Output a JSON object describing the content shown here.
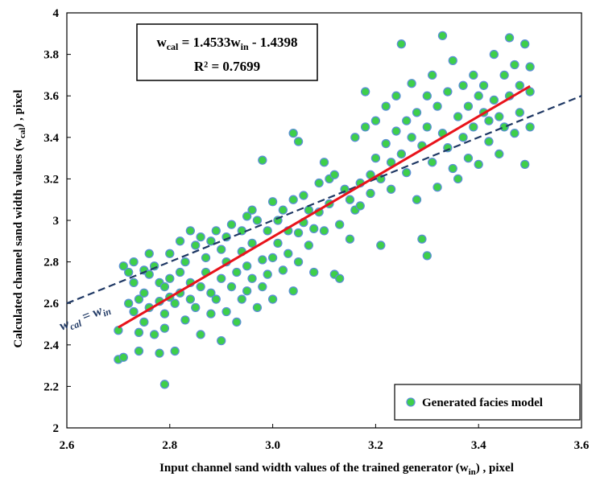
{
  "chart_data": {
    "type": "scatter",
    "xlabel": "Input channel sand width values of the trained generator (w",
    "xlabel_sub": "in",
    "xlabel_tail": ") , pixel",
    "ylabel": "Calculated channel sand width values (w",
    "ylabel_sub": "cal",
    "ylabel_tail": ") , pixel",
    "xlim": [
      2.6,
      3.6
    ],
    "ylim": [
      2,
      4
    ],
    "xticks": [
      "2.6",
      "2.8",
      "3.0",
      "3.2",
      "3.4",
      "3.6"
    ],
    "yticks": [
      "2",
      "2.2",
      "2.4",
      "2.6",
      "2.8",
      "3",
      "3.2",
      "3.4",
      "3.6",
      "3.8",
      "4"
    ],
    "grid": false,
    "legend_position": "bottom-right",
    "equation": {
      "lhs": "w",
      "lhs_sub": "cal",
      "mid": " = 1.4533w",
      "mid_sub": "in",
      "tail": " - 1.4398",
      "r2": "R² = 0.7699"
    },
    "identity_label": {
      "main": "w",
      "sub1": "cal",
      "eq": " = w",
      "sub2": "in"
    },
    "trend_line": {
      "slope": 1.4533,
      "intercept": -1.4398,
      "x_start": 2.7,
      "x_end": 3.5,
      "color": "#e8131b"
    },
    "identity_line": {
      "color": "#1f3864",
      "style": "dashed"
    },
    "series": [
      {
        "name": "Generated facies model",
        "marker_fill": "#3ecf4a",
        "marker_edge": "#5b8fd6",
        "points": [
          [
            2.7,
            2.33
          ],
          [
            2.7,
            2.47
          ],
          [
            2.71,
            2.78
          ],
          [
            2.71,
            2.34
          ],
          [
            2.72,
            2.6
          ],
          [
            2.72,
            2.75
          ],
          [
            2.73,
            2.7
          ],
          [
            2.73,
            2.8
          ],
          [
            2.73,
            2.56
          ],
          [
            2.74,
            2.62
          ],
          [
            2.74,
            2.46
          ],
          [
            2.74,
            2.37
          ],
          [
            2.75,
            2.76
          ],
          [
            2.75,
            2.51
          ],
          [
            2.75,
            2.65
          ],
          [
            2.76,
            2.74
          ],
          [
            2.76,
            2.84
          ],
          [
            2.76,
            2.58
          ],
          [
            2.77,
            2.78
          ],
          [
            2.77,
            2.45
          ],
          [
            2.78,
            2.36
          ],
          [
            2.78,
            2.61
          ],
          [
            2.78,
            2.7
          ],
          [
            2.79,
            2.68
          ],
          [
            2.79,
            2.21
          ],
          [
            2.79,
            2.48
          ],
          [
            2.79,
            2.55
          ],
          [
            2.8,
            2.63
          ],
          [
            2.8,
            2.84
          ],
          [
            2.8,
            2.72
          ],
          [
            2.81,
            2.37
          ],
          [
            2.81,
            2.6
          ],
          [
            2.82,
            2.9
          ],
          [
            2.82,
            2.75
          ],
          [
            2.82,
            2.65
          ],
          [
            2.83,
            2.52
          ],
          [
            2.83,
            2.8
          ],
          [
            2.84,
            2.95
          ],
          [
            2.84,
            2.7
          ],
          [
            2.84,
            2.62
          ],
          [
            2.85,
            2.88
          ],
          [
            2.85,
            2.58
          ],
          [
            2.86,
            2.68
          ],
          [
            2.86,
            2.92
          ],
          [
            2.86,
            2.45
          ],
          [
            2.87,
            2.75
          ],
          [
            2.87,
            2.82
          ],
          [
            2.88,
            2.55
          ],
          [
            2.88,
            2.9
          ],
          [
            2.88,
            2.65
          ],
          [
            2.89,
            2.95
          ],
          [
            2.89,
            2.62
          ],
          [
            2.9,
            2.72
          ],
          [
            2.9,
            2.86
          ],
          [
            2.9,
            2.42
          ],
          [
            2.91,
            2.8
          ],
          [
            2.91,
            2.92
          ],
          [
            2.91,
            2.56
          ],
          [
            2.92,
            2.68
          ],
          [
            2.92,
            2.98
          ],
          [
            2.93,
            2.75
          ],
          [
            2.93,
            2.51
          ],
          [
            2.94,
            2.85
          ],
          [
            2.94,
            2.95
          ],
          [
            2.94,
            2.62
          ],
          [
            2.95,
            3.02
          ],
          [
            2.95,
            2.78
          ],
          [
            2.95,
            2.66
          ],
          [
            2.96,
            3.05
          ],
          [
            2.96,
            2.72
          ],
          [
            2.96,
            2.89
          ],
          [
            2.97,
            2.58
          ],
          [
            2.97,
            3.0
          ],
          [
            2.98,
            2.81
          ],
          [
            2.98,
            3.29
          ],
          [
            2.98,
            2.68
          ],
          [
            2.99,
            2.95
          ],
          [
            2.99,
            2.74
          ],
          [
            3.0,
            3.09
          ],
          [
            3.0,
            2.82
          ],
          [
            3.0,
            2.62
          ],
          [
            3.01,
            3.0
          ],
          [
            3.01,
            2.89
          ],
          [
            3.02,
            2.76
          ],
          [
            3.02,
            3.05
          ],
          [
            3.03,
            2.95
          ],
          [
            3.03,
            2.84
          ],
          [
            3.04,
            2.66
          ],
          [
            3.04,
            3.1
          ],
          [
            3.04,
            3.42
          ],
          [
            3.05,
            3.38
          ],
          [
            3.05,
            2.94
          ],
          [
            3.05,
            2.8
          ],
          [
            3.06,
            3.12
          ],
          [
            3.06,
            2.99
          ],
          [
            3.07,
            2.88
          ],
          [
            3.07,
            3.05
          ],
          [
            3.08,
            2.96
          ],
          [
            3.08,
            2.75
          ],
          [
            3.09,
            3.18
          ],
          [
            3.09,
            3.04
          ],
          [
            3.1,
            3.28
          ],
          [
            3.1,
            2.95
          ],
          [
            3.11,
            3.2
          ],
          [
            3.11,
            3.08
          ],
          [
            3.12,
            2.74
          ],
          [
            3.12,
            3.22
          ],
          [
            3.13,
            2.72
          ],
          [
            3.13,
            2.98
          ],
          [
            3.14,
            3.15
          ],
          [
            3.15,
            2.91
          ],
          [
            3.15,
            3.1
          ],
          [
            3.16,
            3.05
          ],
          [
            3.16,
            3.4
          ],
          [
            3.17,
            3.18
          ],
          [
            3.17,
            3.07
          ],
          [
            3.18,
            3.45
          ],
          [
            3.18,
            3.62
          ],
          [
            3.19,
            3.22
          ],
          [
            3.19,
            3.13
          ],
          [
            3.2,
            3.48
          ],
          [
            3.2,
            3.3
          ],
          [
            3.21,
            3.2
          ],
          [
            3.21,
            2.88
          ],
          [
            3.22,
            3.55
          ],
          [
            3.22,
            3.37
          ],
          [
            3.23,
            3.28
          ],
          [
            3.23,
            3.15
          ],
          [
            3.24,
            3.6
          ],
          [
            3.24,
            3.43
          ],
          [
            3.25,
            3.85
          ],
          [
            3.25,
            3.32
          ],
          [
            3.26,
            3.48
          ],
          [
            3.26,
            3.23
          ],
          [
            3.27,
            3.66
          ],
          [
            3.27,
            3.4
          ],
          [
            3.28,
            3.1
          ],
          [
            3.28,
            3.52
          ],
          [
            3.29,
            2.91
          ],
          [
            3.29,
            3.36
          ],
          [
            3.3,
            3.6
          ],
          [
            3.3,
            2.83
          ],
          [
            3.3,
            3.45
          ],
          [
            3.31,
            3.7
          ],
          [
            3.31,
            3.28
          ],
          [
            3.32,
            3.55
          ],
          [
            3.32,
            3.16
          ],
          [
            3.33,
            3.89
          ],
          [
            3.33,
            3.42
          ],
          [
            3.34,
            3.62
          ],
          [
            3.34,
            3.35
          ],
          [
            3.35,
            3.77
          ],
          [
            3.35,
            3.25
          ],
          [
            3.36,
            3.5
          ],
          [
            3.36,
            3.2
          ],
          [
            3.37,
            3.65
          ],
          [
            3.37,
            3.4
          ],
          [
            3.38,
            3.55
          ],
          [
            3.38,
            3.3
          ],
          [
            3.39,
            3.7
          ],
          [
            3.39,
            3.45
          ],
          [
            3.4,
            3.6
          ],
          [
            3.4,
            3.27
          ],
          [
            3.41,
            3.52
          ],
          [
            3.41,
            3.65
          ],
          [
            3.42,
            3.38
          ],
          [
            3.42,
            3.48
          ],
          [
            3.43,
            3.8
          ],
          [
            3.43,
            3.58
          ],
          [
            3.44,
            3.32
          ],
          [
            3.44,
            3.5
          ],
          [
            3.45,
            3.7
          ],
          [
            3.45,
            3.45
          ],
          [
            3.46,
            3.88
          ],
          [
            3.46,
            3.6
          ],
          [
            3.47,
            3.42
          ],
          [
            3.47,
            3.75
          ],
          [
            3.48,
            3.52
          ],
          [
            3.48,
            3.65
          ],
          [
            3.49,
            3.85
          ],
          [
            3.49,
            3.27
          ],
          [
            3.5,
            3.62
          ],
          [
            3.5,
            3.45
          ],
          [
            3.5,
            3.74
          ]
        ]
      }
    ]
  }
}
